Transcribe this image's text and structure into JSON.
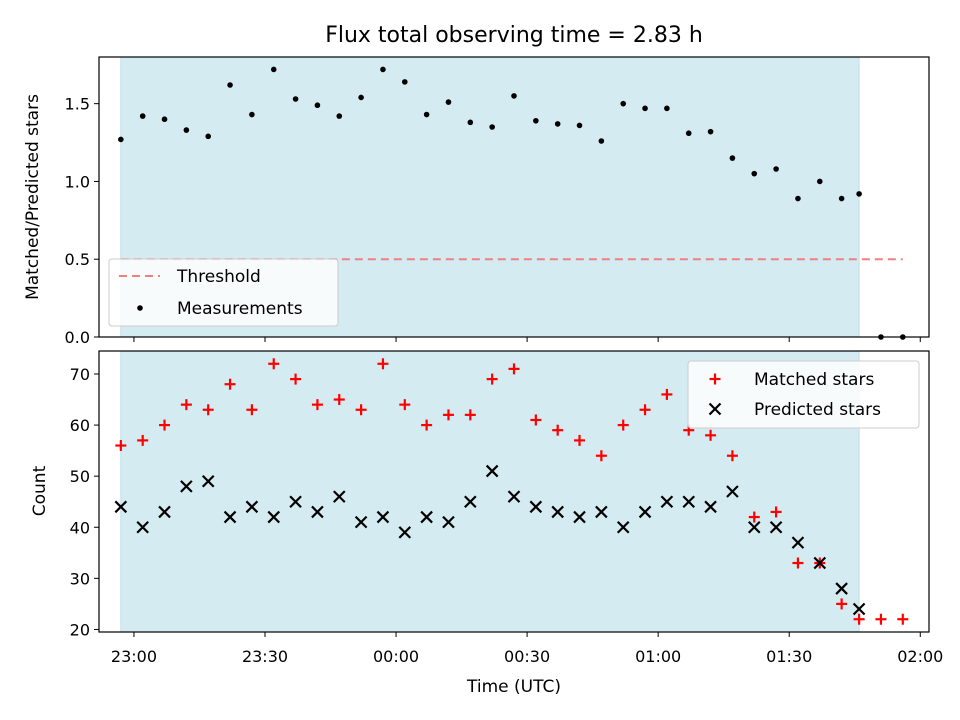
{
  "figure": {
    "title": "Flux total observing time = 2.83 h",
    "xlabel": "Time (UTC)",
    "top_ylabel": "Matched/Predicted stars",
    "bottom_ylabel": "Count"
  },
  "colors": {
    "shade": "#d4ebf1",
    "threshold": "#f08080",
    "matched": "#ff0000",
    "predicted": "#000000",
    "measurement": "#000000"
  },
  "chart_data": [
    {
      "type": "scatter",
      "panel": "top",
      "ylabel": "Matched/Predicted stars",
      "ylim": [
        0,
        1.8
      ],
      "y_ticks": [
        "0.0",
        "0.5",
        "1.0",
        "1.5"
      ],
      "xlim": [
        "22:52",
        "02:02"
      ],
      "x_ticks": [
        "23:00",
        "23:30",
        "00:00",
        "00:30",
        "01:00",
        "01:30",
        "02:00"
      ],
      "shaded_span": [
        "22:57",
        "01:46"
      ],
      "threshold": {
        "name": "Threshold",
        "value": 0.5,
        "x_range": [
          "22:57",
          "01:56"
        ]
      },
      "legend": {
        "placement": "lower-left",
        "entries": [
          "Threshold",
          "Measurements"
        ]
      },
      "series": [
        {
          "name": "Measurements",
          "points": [
            [
              "22:57",
              1.27
            ],
            [
              "23:02",
              1.42
            ],
            [
              "23:07",
              1.4
            ],
            [
              "23:12",
              1.33
            ],
            [
              "23:17",
              1.29
            ],
            [
              "23:22",
              1.62
            ],
            [
              "23:27",
              1.43
            ],
            [
              "23:32",
              1.72
            ],
            [
              "23:37",
              1.53
            ],
            [
              "23:42",
              1.49
            ],
            [
              "23:47",
              1.42
            ],
            [
              "23:52",
              1.54
            ],
            [
              "23:57",
              1.72
            ],
            [
              "00:02",
              1.64
            ],
            [
              "00:07",
              1.43
            ],
            [
              "00:12",
              1.51
            ],
            [
              "00:17",
              1.38
            ],
            [
              "00:22",
              1.35
            ],
            [
              "00:27",
              1.55
            ],
            [
              "00:32",
              1.39
            ],
            [
              "00:37",
              1.37
            ],
            [
              "00:42",
              1.36
            ],
            [
              "00:47",
              1.26
            ],
            [
              "00:52",
              1.5
            ],
            [
              "00:57",
              1.47
            ],
            [
              "01:02",
              1.47
            ],
            [
              "01:07",
              1.31
            ],
            [
              "01:12",
              1.32
            ],
            [
              "01:17",
              1.15
            ],
            [
              "01:22",
              1.05
            ],
            [
              "01:27",
              1.08
            ],
            [
              "01:32",
              0.89
            ],
            [
              "01:37",
              1.0
            ],
            [
              "01:42",
              0.89
            ],
            [
              "01:46",
              0.92
            ],
            [
              "01:51",
              0.0
            ],
            [
              "01:56",
              0.0
            ]
          ]
        }
      ]
    },
    {
      "type": "scatter",
      "panel": "bottom",
      "xlabel": "Time (UTC)",
      "ylabel": "Count",
      "ylim": [
        19.5,
        74.5
      ],
      "y_ticks": [
        "20",
        "30",
        "40",
        "50",
        "60",
        "70"
      ],
      "xlim": [
        "22:52",
        "02:02"
      ],
      "x_ticks": [
        "23:00",
        "23:30",
        "00:00",
        "00:30",
        "01:00",
        "01:30",
        "02:00"
      ],
      "shaded_span": [
        "22:57",
        "01:46"
      ],
      "legend": {
        "placement": "top-right",
        "entries": [
          "Matched stars",
          "Predicted stars"
        ]
      },
      "times": [
        "22:57",
        "23:02",
        "23:07",
        "23:12",
        "23:17",
        "23:22",
        "23:27",
        "23:32",
        "23:37",
        "23:42",
        "23:47",
        "23:52",
        "23:57",
        "00:02",
        "00:07",
        "00:12",
        "00:17",
        "00:22",
        "00:27",
        "00:32",
        "00:37",
        "00:42",
        "00:47",
        "00:52",
        "00:57",
        "01:02",
        "01:07",
        "01:12",
        "01:17",
        "01:22",
        "01:27",
        "01:32",
        "01:37",
        "01:42",
        "01:46",
        "01:51",
        "01:56"
      ],
      "series": [
        {
          "name": "Matched stars",
          "values": [
            56,
            57,
            60,
            64,
            63,
            68,
            63,
            72,
            69,
            64,
            65,
            63,
            72,
            64,
            60,
            62,
            62,
            69,
            71,
            61,
            59,
            57,
            54,
            60,
            63,
            66,
            59,
            58,
            54,
            42,
            43,
            33,
            33,
            25,
            22,
            22,
            22
          ]
        },
        {
          "name": "Predicted stars",
          "values": [
            44,
            40,
            43,
            48,
            49,
            42,
            44,
            42,
            45,
            43,
            46,
            41,
            42,
            39,
            42,
            41,
            45,
            51,
            46,
            44,
            43,
            42,
            43,
            40,
            43,
            45,
            45,
            44,
            47,
            40,
            40,
            37,
            33,
            28,
            24,
            null,
            null
          ]
        }
      ]
    }
  ]
}
